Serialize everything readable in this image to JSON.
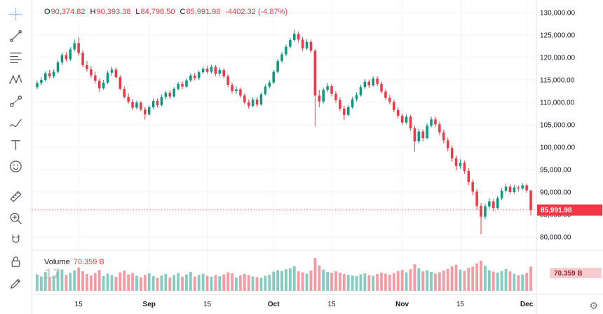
{
  "colors": {
    "up": "#089981",
    "down": "#f23645",
    "accent_red": "#f23645",
    "axis_text": "#131722",
    "grid": "#f0f3fa",
    "border": "#e0e3eb",
    "volume_up": "rgba(8,153,129,0.5)",
    "volume_down": "rgba(242,54,69,0.5)",
    "volume_badge_bg": "#f6ccd0",
    "volume_badge_text": "#9e222c"
  },
  "legend": {
    "o_label": "O",
    "o": "90,374.82",
    "h_label": "H",
    "h": "90,393.38",
    "l_label": "L",
    "l": "84,798.50",
    "c_label": "C",
    "c": "85,991.98",
    "change": "-4402.32 (-4.87%)"
  },
  "volume_pane": {
    "title": "Volume",
    "value": "70.359 B"
  },
  "price_axis": {
    "labels": [
      "130,000.00",
      "125,000.00",
      "120,000.00",
      "115,000.00",
      "110,000.00",
      "105,000.00",
      "100,000.00",
      "95,000.00",
      "90,000.00",
      "85,000.00",
      "80,000.00"
    ],
    "current_price": "85,991.98",
    "volume_badge": "70.359 B"
  },
  "watermark": "17",
  "icons": {
    "gear": "⚙"
  },
  "toolbar": {
    "tools": [
      "crosshair",
      "trend-line",
      "fib-retracement",
      "xabcd-pattern",
      "forecast",
      "brush",
      "text",
      "emoji",
      "ruler",
      "zoom-in",
      "magnet",
      "lock",
      "edit"
    ]
  },
  "chart_data": {
    "type": "candlestick",
    "title": "",
    "legend_stats": {
      "open": 90374.82,
      "high": 90393.38,
      "low": 84798.5,
      "close": 85991.98,
      "change": -4402.32,
      "change_pct": -4.87
    },
    "price_ticks": [
      130000,
      125000,
      120000,
      115000,
      110000,
      105000,
      100000,
      95000,
      90000,
      85000,
      80000
    ],
    "price_axis_range": [
      80000,
      130000
    ],
    "grid": true,
    "current_price": 85991.98,
    "current_volume_b": 70.359,
    "time_ticks": [
      {
        "i": 10,
        "label": "15"
      },
      {
        "i": 27,
        "label": "Sep"
      },
      {
        "i": 41,
        "label": "15"
      },
      {
        "i": 57,
        "label": "Oct"
      },
      {
        "i": 71,
        "label": "15"
      },
      {
        "i": 88,
        "label": "Nov"
      },
      {
        "i": 102,
        "label": "15"
      },
      {
        "i": 118,
        "label": "Dec"
      }
    ],
    "candles": [
      [
        113400,
        114800,
        112900,
        114300
      ],
      [
        114300,
        115600,
        113800,
        115000
      ],
      [
        115000,
        116900,
        114600,
        116500
      ],
      [
        116500,
        117200,
        115300,
        115800
      ],
      [
        115800,
        117400,
        115400,
        116800
      ],
      [
        116800,
        119300,
        116500,
        118900
      ],
      [
        118900,
        121000,
        118300,
        120500
      ],
      [
        120500,
        121200,
        119100,
        119600
      ],
      [
        119600,
        122300,
        119200,
        121800
      ],
      [
        121800,
        124000,
        121300,
        123200
      ],
      [
        123200,
        124500,
        120400,
        121000
      ],
      [
        121000,
        121600,
        117800,
        118300
      ],
      [
        118300,
        119200,
        116800,
        117400
      ],
      [
        117400,
        118100,
        115500,
        116000
      ],
      [
        116000,
        116800,
        114200,
        114800
      ],
      [
        114800,
        115300,
        112300,
        113100
      ],
      [
        113100,
        115000,
        112800,
        114400
      ],
      [
        114400,
        117000,
        114100,
        116600
      ],
      [
        116600,
        117900,
        115900,
        117300
      ],
      [
        117300,
        117800,
        115200,
        115600
      ],
      [
        115600,
        116100,
        112700,
        113000
      ],
      [
        113000,
        113600,
        110800,
        111200
      ],
      [
        111200,
        112000,
        109700,
        110100
      ],
      [
        110100,
        110700,
        108300,
        108800
      ],
      [
        108800,
        110400,
        108400,
        109900
      ],
      [
        109900,
        110300,
        108000,
        108400
      ],
      [
        108400,
        109000,
        106200,
        107300
      ],
      [
        107300,
        109400,
        107000,
        108900
      ],
      [
        108900,
        110800,
        108500,
        110300
      ],
      [
        110300,
        110900,
        108900,
        109400
      ],
      [
        109400,
        111700,
        109100,
        111200
      ],
      [
        111200,
        112600,
        110700,
        112100
      ],
      [
        112100,
        112700,
        110800,
        111300
      ],
      [
        111300,
        113400,
        111000,
        113000
      ],
      [
        113000,
        114600,
        112600,
        114100
      ],
      [
        114100,
        114700,
        112900,
        113500
      ],
      [
        113500,
        115400,
        113200,
        114900
      ],
      [
        114900,
        116500,
        114500,
        116000
      ],
      [
        116000,
        116600,
        114900,
        115400
      ],
      [
        115400,
        117100,
        115000,
        116700
      ],
      [
        116700,
        118000,
        116300,
        117500
      ],
      [
        117500,
        118200,
        116300,
        116800
      ],
      [
        116800,
        118400,
        116400,
        117900
      ],
      [
        117900,
        118300,
        115900,
        116400
      ],
      [
        116400,
        117700,
        115800,
        117200
      ],
      [
        117200,
        117600,
        115300,
        115800
      ],
      [
        115800,
        116300,
        113400,
        113900
      ],
      [
        113900,
        114400,
        112000,
        112500
      ],
      [
        112500,
        113600,
        111900,
        112900
      ],
      [
        112900,
        113300,
        111000,
        111500
      ],
      [
        111500,
        112000,
        109500,
        110000
      ],
      [
        110000,
        110600,
        108600,
        109200
      ],
      [
        109200,
        111100,
        108900,
        110600
      ],
      [
        110600,
        111100,
        109000,
        109500
      ],
      [
        109500,
        112200,
        109300,
        111800
      ],
      [
        111800,
        114000,
        111500,
        113500
      ],
      [
        113500,
        114900,
        113100,
        114400
      ],
      [
        114400,
        117200,
        114100,
        116800
      ],
      [
        116800,
        119700,
        116500,
        119200
      ],
      [
        119200,
        121200,
        118800,
        120700
      ],
      [
        120700,
        122900,
        120300,
        122400
      ],
      [
        122400,
        124400,
        122000,
        123900
      ],
      [
        123900,
        126200,
        123500,
        125300
      ],
      [
        125300,
        125800,
        123300,
        124000
      ],
      [
        124000,
        124600,
        121400,
        122000
      ],
      [
        122000,
        124100,
        121700,
        123500
      ],
      [
        123500,
        124000,
        120900,
        121500
      ],
      [
        121500,
        121900,
        104600,
        111500
      ],
      [
        111500,
        112800,
        108900,
        110200
      ],
      [
        110200,
        113300,
        109800,
        112800
      ],
      [
        112800,
        114300,
        112300,
        113600
      ],
      [
        113600,
        114100,
        111300,
        111900
      ],
      [
        111900,
        112500,
        109900,
        110500
      ],
      [
        110500,
        111100,
        108000,
        108600
      ],
      [
        108600,
        109200,
        106000,
        107200
      ],
      [
        107200,
        109400,
        106900,
        108900
      ],
      [
        108900,
        111200,
        108600,
        110700
      ],
      [
        110700,
        112200,
        110200,
        111600
      ],
      [
        111600,
        113900,
        111300,
        113400
      ],
      [
        113400,
        115200,
        113000,
        114600
      ],
      [
        114600,
        115100,
        113200,
        113800
      ],
      [
        113800,
        115800,
        113500,
        115300
      ],
      [
        115300,
        115800,
        113600,
        114100
      ],
      [
        114100,
        114600,
        111900,
        112400
      ],
      [
        112400,
        112900,
        110500,
        111000
      ],
      [
        111000,
        111600,
        109500,
        110100
      ],
      [
        110100,
        110600,
        107800,
        108300
      ],
      [
        108300,
        108900,
        106400,
        107000
      ],
      [
        107000,
        107500,
        104900,
        105500
      ],
      [
        105500,
        107300,
        105100,
        106800
      ],
      [
        106800,
        107200,
        103600,
        104200
      ],
      [
        104200,
        104800,
        99000,
        101300
      ],
      [
        101300,
        104100,
        100800,
        103500
      ],
      [
        103500,
        104000,
        101300,
        102000
      ],
      [
        102000,
        105300,
        101700,
        104800
      ],
      [
        104800,
        106800,
        104400,
        106200
      ],
      [
        106200,
        106800,
        104500,
        105100
      ],
      [
        105100,
        105700,
        102700,
        103300
      ],
      [
        103300,
        103900,
        100900,
        101500
      ],
      [
        101500,
        102100,
        99100,
        99800
      ],
      [
        99800,
        100400,
        96800,
        97500
      ],
      [
        97500,
        98100,
        94900,
        95800
      ],
      [
        95800,
        97300,
        95200,
        96500
      ],
      [
        96500,
        97000,
        94100,
        94700
      ],
      [
        94700,
        95300,
        91500,
        92200
      ],
      [
        92200,
        92800,
        89300,
        90100
      ],
      [
        90100,
        90700,
        86100,
        86900
      ],
      [
        86900,
        87500,
        80600,
        84500
      ],
      [
        84500,
        87400,
        83900,
        86800
      ],
      [
        86800,
        88600,
        86300,
        87900
      ],
      [
        87900,
        88400,
        85800,
        86400
      ],
      [
        86400,
        89100,
        86000,
        88600
      ],
      [
        88600,
        90900,
        88200,
        90300
      ],
      [
        90300,
        91900,
        89900,
        91200
      ],
      [
        91200,
        91700,
        89500,
        90000
      ],
      [
        90000,
        91600,
        89600,
        91000
      ],
      [
        91000,
        91500,
        90100,
        90800
      ],
      [
        90800,
        92000,
        90400,
        91500
      ],
      [
        91500,
        91900,
        89800,
        90374.82
      ],
      [
        90374.82,
        90393.38,
        84798.5,
        85991.98
      ]
    ],
    "volumes": [
      48,
      42,
      55,
      38,
      44,
      58,
      62,
      47,
      53,
      60,
      68,
      57,
      49,
      45,
      52,
      61,
      43,
      50,
      46,
      41,
      54,
      59,
      48,
      52,
      44,
      40,
      47,
      51,
      43,
      38,
      45,
      49,
      39,
      46,
      52,
      41,
      48,
      55,
      42,
      47,
      50,
      44,
      41,
      46,
      43,
      48,
      54,
      51,
      39,
      45,
      49,
      46,
      42,
      40,
      38,
      44,
      47,
      56,
      60,
      58,
      63,
      66,
      72,
      57,
      54,
      50,
      59,
      96,
      74,
      62,
      55,
      52,
      57,
      53,
      49,
      47,
      45,
      43,
      48,
      51,
      46,
      44,
      49,
      53,
      50,
      47,
      52,
      58,
      61,
      54,
      63,
      78,
      66,
      57,
      60,
      55,
      50,
      54,
      59,
      64,
      72,
      76,
      62,
      58,
      67,
      71,
      80,
      88,
      73,
      60,
      56,
      53,
      58,
      64,
      57,
      50,
      46,
      48,
      52,
      70.359
    ]
  }
}
